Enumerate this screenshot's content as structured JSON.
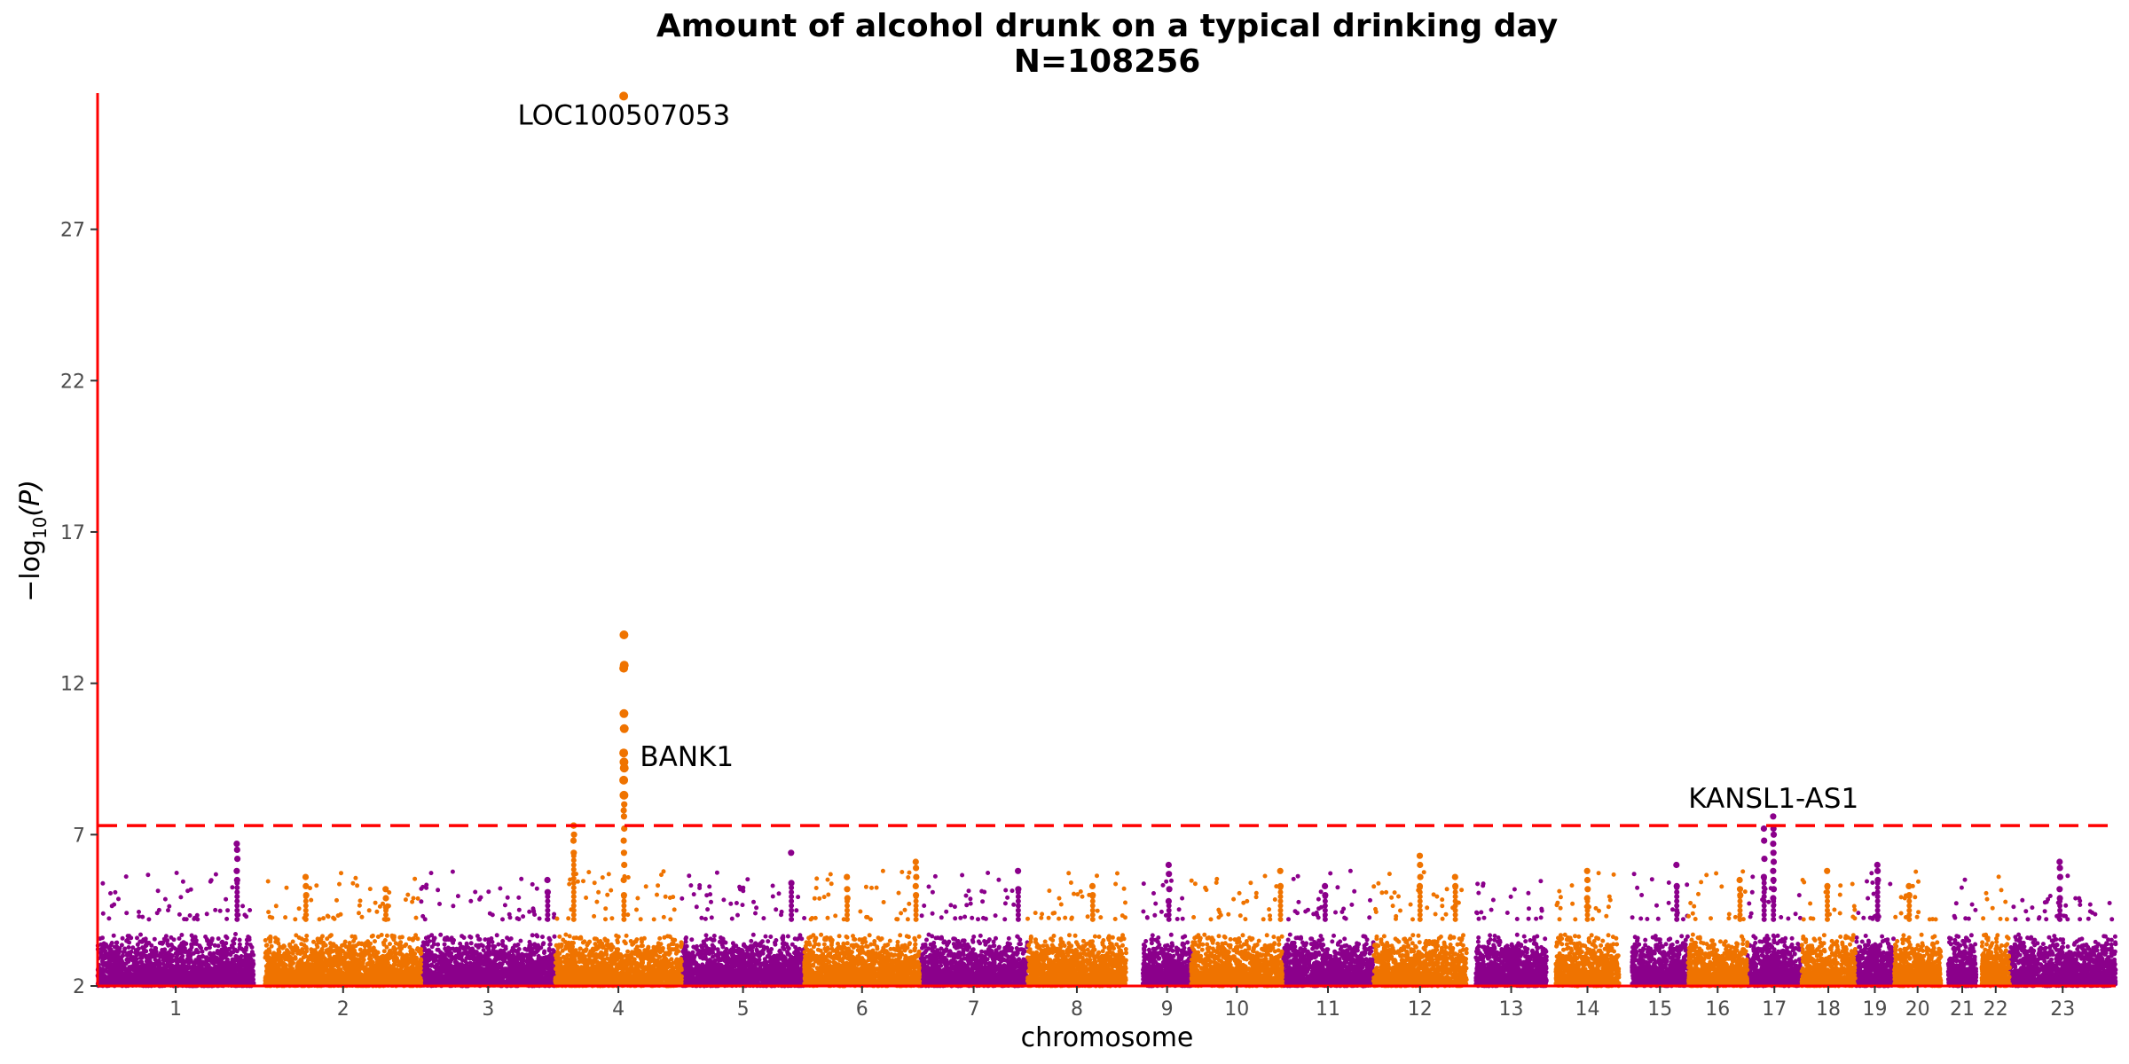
{
  "chart_data": {
    "type": "scatter",
    "title": "Amount of alcohol drunk on a typical drinking day",
    "subtitle": "N=108256",
    "xlabel": "chromosome",
    "ylabel": "−log",
    "ylabel_sub": "10",
    "ylabel_arg": "(P)",
    "ylim": [
      2,
      31.5
    ],
    "yticks": [
      2,
      7,
      12,
      17,
      22,
      27
    ],
    "significance_threshold": 7.3,
    "grid": false,
    "colors": {
      "odd": "#8b008b",
      "even": "#ef7300",
      "threshold": "#ff0000",
      "axis": "#ff0000"
    },
    "chromosomes": [
      {
        "label": "1",
        "start": 0,
        "end": 0.84
      },
      {
        "label": "2",
        "start": 0.9,
        "end": 1.74
      },
      {
        "label": "3",
        "start": 1.74,
        "end": 2.46
      },
      {
        "label": "4",
        "start": 2.46,
        "end": 3.14
      },
      {
        "label": "5",
        "start": 3.14,
        "end": 3.8
      },
      {
        "label": "6",
        "start": 3.8,
        "end": 4.42
      },
      {
        "label": "7",
        "start": 4.42,
        "end": 5.0
      },
      {
        "label": "8",
        "start": 5.0,
        "end": 5.53
      },
      {
        "label": "9",
        "start": 5.62,
        "end": 5.88
      },
      {
        "label": "10",
        "start": 5.88,
        "end": 6.37
      },
      {
        "label": "11",
        "start": 6.37,
        "end": 6.86
      },
      {
        "label": "12",
        "start": 6.86,
        "end": 7.36
      },
      {
        "label": "13",
        "start": 7.41,
        "end": 7.79
      },
      {
        "label": "14",
        "start": 7.84,
        "end": 8.18
      },
      {
        "label": "15",
        "start": 8.25,
        "end": 8.55
      },
      {
        "label": "16",
        "start": 8.55,
        "end": 8.87
      },
      {
        "label": "17",
        "start": 8.87,
        "end": 9.16
      },
      {
        "label": "18",
        "start": 9.16,
        "end": 9.45
      },
      {
        "label": "19",
        "start": 9.45,
        "end": 9.66
      },
      {
        "label": "20",
        "start": 9.66,
        "end": 9.91
      },
      {
        "label": "21",
        "start": 9.95,
        "end": 10.1
      },
      {
        "label": "22",
        "start": 10.13,
        "end": 10.28
      },
      {
        "label": "23",
        "start": 10.28,
        "end": 10.85
      }
    ],
    "peaks": [
      {
        "chrom": "1",
        "pos": 0.75,
        "values": [
          6.7,
          6.5,
          6.2,
          5.8,
          5.5
        ]
      },
      {
        "chrom": "2",
        "pos": 1.12,
        "values": [
          5.6,
          5.3,
          5.0
        ]
      },
      {
        "chrom": "2",
        "pos": 1.55,
        "values": [
          5.2,
          4.9,
          4.6
        ]
      },
      {
        "chrom": "3",
        "pos": 2.42,
        "values": [
          5.5,
          5.1
        ]
      },
      {
        "chrom": "4",
        "pos": 2.56,
        "values": [
          7.3,
          7.3,
          7.0,
          6.8,
          6.4
        ]
      },
      {
        "chrom": "4",
        "pos": 2.83,
        "values": [
          31.4,
          13.6,
          12.6,
          12.5,
          11.0,
          10.5,
          9.7,
          9.4,
          9.2,
          8.8,
          8.3,
          8.0,
          7.8,
          7.6,
          7.2,
          6.8,
          6.4,
          6.0,
          5.5,
          5.0
        ]
      },
      {
        "chrom": "5",
        "pos": 3.73,
        "values": [
          6.4,
          5.4
        ]
      },
      {
        "chrom": "6",
        "pos": 4.03,
        "values": [
          5.6,
          5.2,
          4.9
        ]
      },
      {
        "chrom": "6",
        "pos": 4.4,
        "values": [
          6.1,
          5.9,
          5.6,
          5.3,
          5.0
        ]
      },
      {
        "chrom": "7",
        "pos": 4.95,
        "values": [
          5.8,
          5.2
        ]
      },
      {
        "chrom": "8",
        "pos": 5.35,
        "values": [
          5.3,
          5.0
        ]
      },
      {
        "chrom": "9",
        "pos": 5.76,
        "values": [
          6.0,
          5.7,
          5.2,
          4.8
        ]
      },
      {
        "chrom": "10",
        "pos": 6.36,
        "values": [
          5.8,
          5.3
        ]
      },
      {
        "chrom": "11",
        "pos": 6.6,
        "values": [
          5.3,
          5.0
        ]
      },
      {
        "chrom": "12",
        "pos": 7.11,
        "values": [
          6.3,
          6.0,
          5.6,
          5.3
        ]
      },
      {
        "chrom": "12",
        "pos": 7.3,
        "values": [
          5.6,
          5.3
        ]
      },
      {
        "chrom": "14",
        "pos": 8.01,
        "values": [
          5.8,
          5.5,
          5.2,
          4.9
        ]
      },
      {
        "chrom": "15",
        "pos": 8.49,
        "values": [
          6.0,
          5.3
        ]
      },
      {
        "chrom": "16",
        "pos": 8.83,
        "values": [
          5.5,
          5.2,
          5.0
        ]
      },
      {
        "chrom": "17",
        "pos": 8.96,
        "values": [
          7.2,
          6.8,
          6.2,
          5.6
        ]
      },
      {
        "chrom": "17",
        "pos": 9.01,
        "values": [
          7.6,
          7.2,
          7.0,
          6.7,
          6.4,
          6.1,
          5.8,
          5.5,
          5.2,
          4.9
        ]
      },
      {
        "chrom": "18",
        "pos": 9.3,
        "values": [
          5.8,
          5.3
        ]
      },
      {
        "chrom": "19",
        "pos": 9.57,
        "values": [
          6.0,
          5.8,
          5.5
        ]
      },
      {
        "chrom": "20",
        "pos": 9.74,
        "values": [
          5.3,
          5.0
        ]
      },
      {
        "chrom": "23",
        "pos": 10.55,
        "values": [
          6.1,
          5.9,
          5.6,
          5.2,
          4.9
        ]
      }
    ],
    "annotations": [
      {
        "label": "LOC100507053",
        "x": 2.83,
        "y": 31.4,
        "anchor": "middle",
        "dy": 1.0
      },
      {
        "label": "BANK1",
        "x": 2.83,
        "y": 9.5,
        "anchor": "start",
        "dy": 0.0
      },
      {
        "label": "KANSL1-AS1",
        "x": 9.01,
        "y": 7.6,
        "anchor": "middle",
        "dy": -0.9
      }
    ]
  }
}
